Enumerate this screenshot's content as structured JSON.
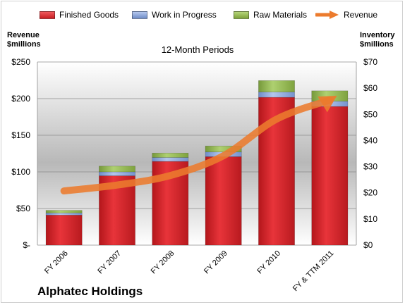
{
  "chart_data": {
    "type": "bar",
    "subtitle": "12-Month Periods",
    "company": "Alphatec Holdings",
    "ylabel_left": [
      "Revenue",
      "$millions"
    ],
    "ylabel_right": [
      "Inventory",
      "$millions"
    ],
    "categories": [
      "FY 2006",
      "FY 2007",
      "FY 2008",
      "FY 2009",
      "FY 2010",
      "FY & TTM 2011"
    ],
    "left_axis": {
      "ylim": [
        0,
        250
      ],
      "ticks": [
        0,
        50,
        100,
        150,
        200,
        250
      ],
      "tick_labels": [
        "$-",
        "$50",
        "$100",
        "$150",
        "$200",
        "$250"
      ]
    },
    "right_axis": {
      "ylim": [
        0,
        70
      ],
      "ticks": [
        0,
        10,
        20,
        30,
        40,
        50,
        60,
        70
      ],
      "tick_labels": [
        "$0",
        "$10",
        "$20",
        "$30",
        "$40",
        "$50",
        "$60",
        "$70"
      ]
    },
    "stacked": true,
    "series": [
      {
        "name": "Finished Goods",
        "axis": "right",
        "color": "#e0262b",
        "values": [
          11.5,
          26.5,
          32.0,
          33.8,
          56.5,
          53.0
        ]
      },
      {
        "name": "Work in Progress",
        "axis": "right",
        "color": "#8aa4d6",
        "values": [
          0.8,
          1.5,
          1.5,
          1.8,
          2.0,
          2.0
        ]
      },
      {
        "name": "Raw Materials",
        "axis": "right",
        "color": "#92b84e",
        "values": [
          1.0,
          2.2,
          1.7,
          2.3,
          4.4,
          4.0
        ]
      },
      {
        "name": "Revenue",
        "axis": "left",
        "type": "line",
        "color": "#ec7b2d",
        "values": [
          74,
          82,
          95,
          122,
          172,
          198
        ]
      }
    ],
    "grid": true,
    "legend_position": "top"
  }
}
